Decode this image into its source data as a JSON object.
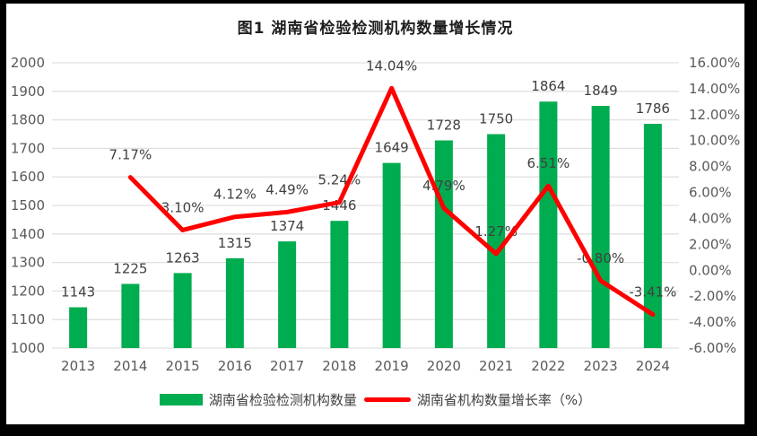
{
  "colors": {
    "bar": "#00AC50",
    "line": "#FF0000",
    "grid": "#E0E0E0",
    "axis_text": "#595959",
    "data_label": "#404040",
    "title_text": "#1F1F1F",
    "frame": "#000000",
    "background": "#FFFFFF"
  },
  "chart_data": {
    "type": "bar+line",
    "title": "图1 湖南省检验检测机构数量增长情况",
    "categories": [
      "2013",
      "2014",
      "2015",
      "2016",
      "2017",
      "2018",
      "2019",
      "2020",
      "2021",
      "2022",
      "2023",
      "2024"
    ],
    "series": [
      {
        "name": "湖南省检验检测机构数量",
        "type": "bar",
        "axis": "left",
        "values": [
          1143,
          1225,
          1263,
          1315,
          1374,
          1446,
          1649,
          1728,
          1750,
          1864,
          1849,
          1786
        ]
      },
      {
        "name": "湖南省机构数量增长率（%）",
        "type": "line",
        "axis": "right",
        "values": [
          null,
          7.17,
          3.1,
          4.12,
          4.49,
          5.24,
          14.04,
          4.79,
          1.27,
          6.51,
          -0.8,
          -3.41
        ],
        "labels": [
          null,
          "7.17%",
          "3.10%",
          "4.12%",
          "4.49%",
          "5.24%",
          "14.04%",
          "4.79%",
          "1.27%",
          "6.51%",
          "-0.80%",
          "-3.41%"
        ]
      }
    ],
    "left_axis": {
      "min": 1000,
      "max": 2000,
      "step": 100,
      "tick_labels": [
        "2000",
        "1900",
        "1800",
        "1700",
        "1600",
        "1500",
        "1400",
        "1300",
        "1200",
        "1100",
        "1000"
      ]
    },
    "right_axis": {
      "min": -6,
      "max": 16,
      "step": 2,
      "tick_labels": [
        "16.00%",
        "14.00%",
        "12.00%",
        "10.00%",
        "8.00%",
        "6.00%",
        "4.00%",
        "2.00%",
        "0.00%",
        "-2.00%",
        "-4.00%",
        "-6.00%"
      ]
    },
    "grid": true,
    "legend_position": "bottom",
    "legend": [
      {
        "label": "湖南省检验检测机构数量",
        "marker": "bar"
      },
      {
        "label": "湖南省机构数量增长率（%）",
        "marker": "line"
      }
    ]
  }
}
